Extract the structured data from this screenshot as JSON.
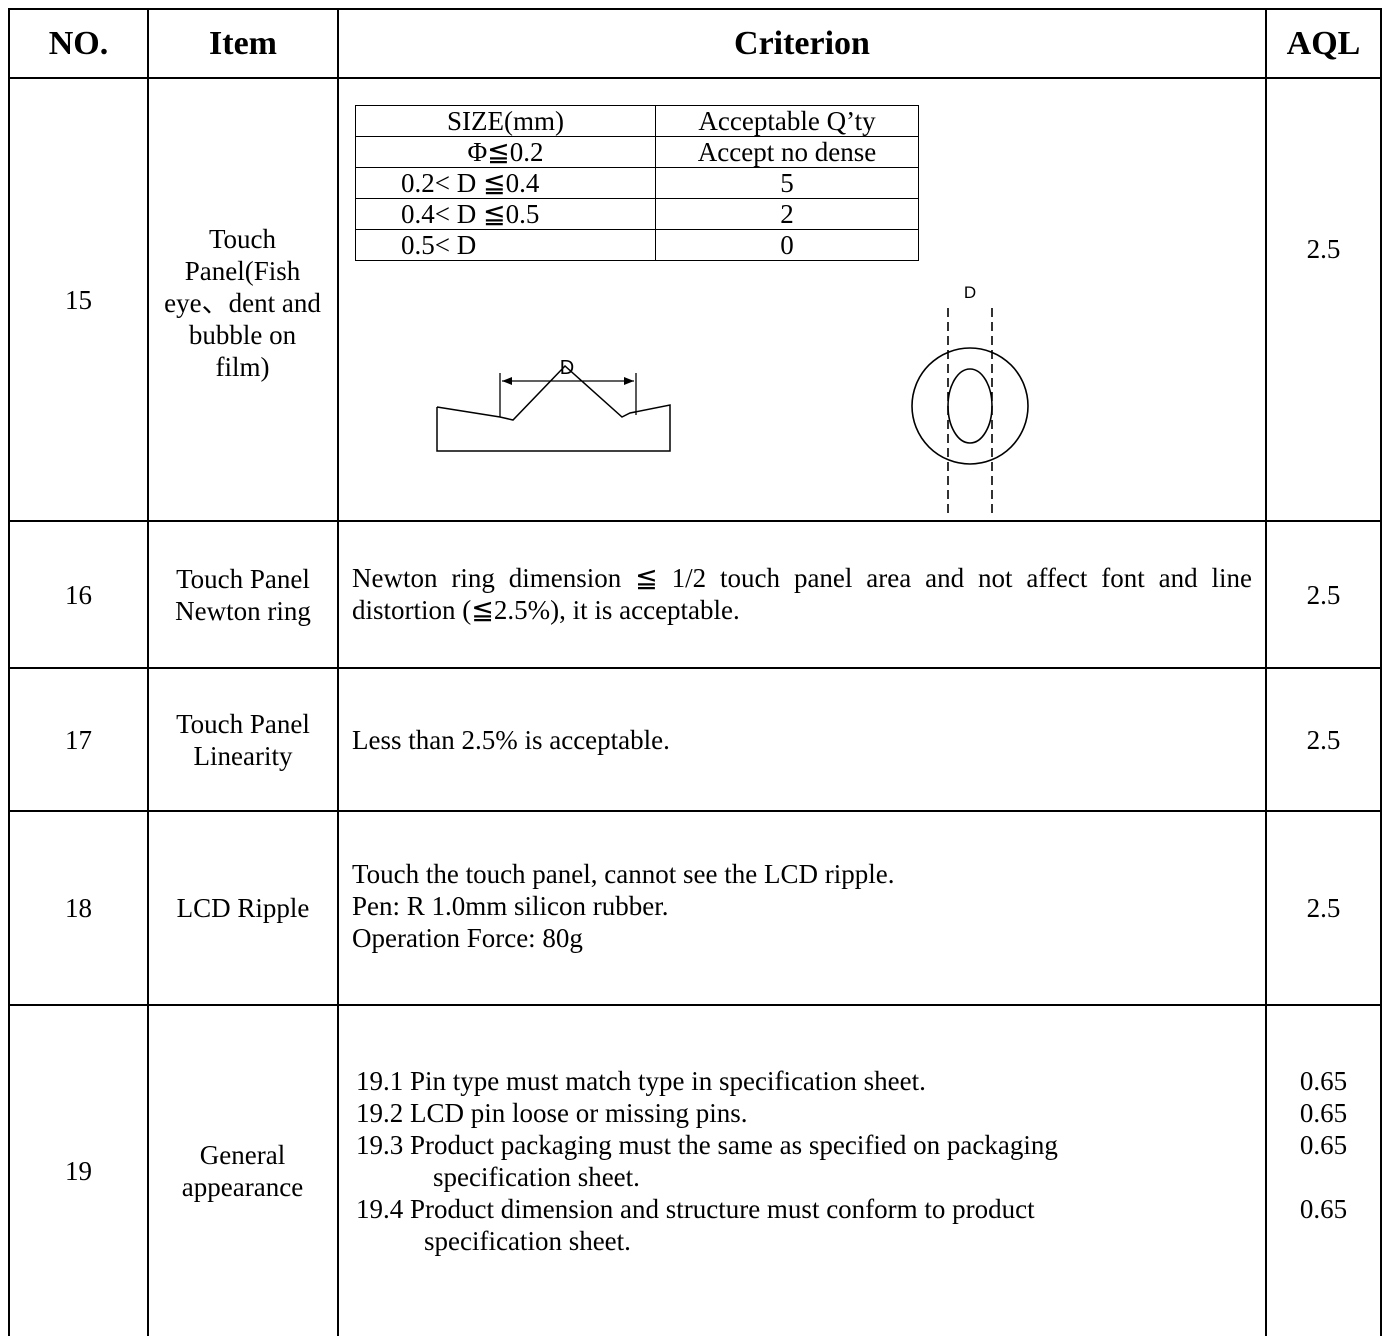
{
  "header": {
    "no": "NO.",
    "item": "Item",
    "criterion": "Criterion",
    "aql": "AQL"
  },
  "rows": [
    {
      "no": "15",
      "item": "Touch Panel(Fish eye、dent and bubble on film)",
      "aql": "2.5",
      "size_table": {
        "headers": [
          "SIZE(mm)",
          "Acceptable Q’ty"
        ],
        "rows": [
          [
            "Φ≦0.2",
            "Accept no dense"
          ],
          [
            "0.2< D ≦0.4",
            "5"
          ],
          [
            "0.4< D ≦0.5",
            "2"
          ],
          [
            "0.5< D",
            "0"
          ]
        ]
      },
      "diagram_label_dent": "D",
      "diagram_label_bubble": "D"
    },
    {
      "no": "16",
      "item": "Touch Panel Newton ring",
      "aql": "2.5",
      "criterion": "Newton ring dimension ≦ 1/2 touch panel area and not affect font and line distortion (≦2.5%), it is acceptable."
    },
    {
      "no": "17",
      "item": "Touch Panel Linearity",
      "aql": "2.5",
      "criterion": "Less than 2.5% is acceptable."
    },
    {
      "no": "18",
      "item": "LCD Ripple",
      "aql": "2.5",
      "criterion_lines": [
        "Touch the touch panel, cannot see the LCD ripple.",
        "Pen: R 1.0mm silicon rubber.",
        "Operation Force: 80g"
      ]
    },
    {
      "no": "19",
      "item": "General appearance",
      "criteria": [
        {
          "text": "19.1 Pin type must match type in specification sheet.",
          "aql": "0.65"
        },
        {
          "text": "19.2 LCD pin loose or missing pins.",
          "aql": "0.65"
        },
        {
          "text": "19.3 Product packaging must the same as specified on packaging",
          "cont": "specification sheet.",
          "aql": "0.65"
        },
        {
          "text": "19.4 Product dimension and structure must conform to product",
          "cont": "specification sheet.",
          "aql": "0.65"
        }
      ]
    }
  ]
}
